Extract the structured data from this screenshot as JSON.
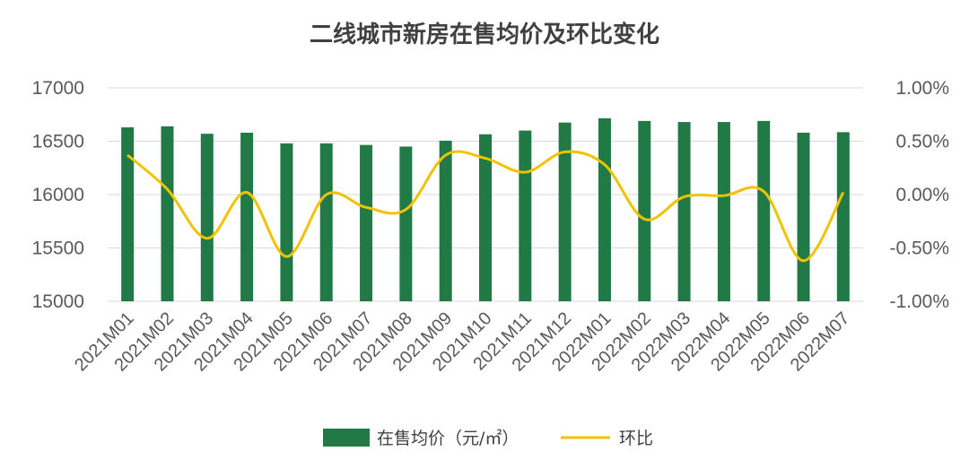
{
  "chart_data": {
    "type": "bar",
    "title": "二线城市新房在售均价及环比变化",
    "categories": [
      "2021M01",
      "2021M02",
      "2021M03",
      "2021M04",
      "2021M05",
      "2021M06",
      "2021M07",
      "2021M08",
      "2021M09",
      "2021M10",
      "2021M11",
      "2021M12",
      "2022M01",
      "2022M02",
      "2022M03",
      "2022M04",
      "2022M05",
      "2022M06",
      "2022M07"
    ],
    "series": [
      {
        "name": "在售均价（元/㎡）",
        "type": "bar",
        "axis": "left",
        "color": "#217a45",
        "values": [
          16630,
          16640,
          16570,
          16580,
          16480,
          16480,
          16465,
          16450,
          16505,
          16565,
          16600,
          16675,
          16715,
          16690,
          16680,
          16680,
          16690,
          16580,
          16585
        ]
      },
      {
        "name": "环比",
        "type": "line",
        "axis": "right",
        "color": "#f2c200",
        "values": [
          0.37,
          0.05,
          -0.41,
          0.02,
          -0.58,
          0.0,
          -0.12,
          -0.14,
          0.37,
          0.34,
          0.21,
          0.4,
          0.28,
          -0.23,
          -0.02,
          -0.01,
          0.03,
          -0.62,
          0.02
        ]
      }
    ],
    "y_left": {
      "min": 15000,
      "max": 17000,
      "ticks": [
        "17000",
        "16500",
        "16000",
        "15500",
        "15000"
      ]
    },
    "y_right": {
      "min": -1.0,
      "max": 1.0,
      "ticks": [
        "1.00%",
        "0.50%",
        "0.00%",
        "-0.50%",
        "-1.00%"
      ]
    },
    "grid": true,
    "legend_position": "bottom"
  }
}
